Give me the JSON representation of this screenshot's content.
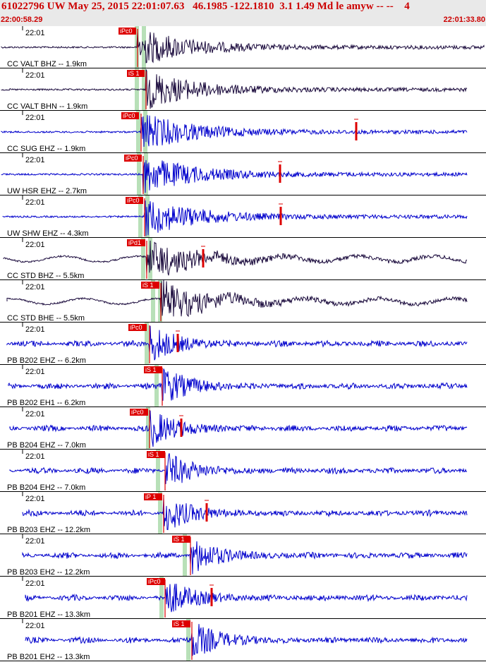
{
  "header": {
    "title": "61022796 UW May 25, 2015 22:01:07.63   46.1985 -122.1810  3.1 1.49 Md le amyw -- --    4",
    "start_time": "22:00:58.29",
    "end_time": "22:01:33.80"
  },
  "colors": {
    "header_bg": "#e9e9e9",
    "header_text": "#cc0000",
    "trace_blue": "#0000cc",
    "trace_dark": "#1a0a3c",
    "pick_red": "#dd0000",
    "window_green": "#b8e0b8"
  },
  "time_tick_label": "22:01",
  "panels": [
    {
      "label": "CC VALT BHZ -- 1.9km",
      "pick": "iPc0",
      "color": "dark"
    },
    {
      "label": "CC VALT BHN -- 1.9km",
      "pick": "iS 1",
      "color": "dark"
    },
    {
      "label": "CC SUG EHZ -- 1.9km",
      "pick": "iPc0",
      "color": "blue"
    },
    {
      "label": "UW HSR EHZ -- 2.7km",
      "pick": "iPc0",
      "color": "blue"
    },
    {
      "label": "UW SHW EHZ -- 4.3km",
      "pick": "iPc0",
      "color": "blue"
    },
    {
      "label": "CC STD BHZ -- 5.5km",
      "pick": "iPd1",
      "color": "dark"
    },
    {
      "label": "CC STD BHE -- 5.5km",
      "pick": "iS 1",
      "color": "dark"
    },
    {
      "label": "PB B202 EHZ -- 6.2km",
      "pick": "iPc0",
      "color": "blue"
    },
    {
      "label": "PB B202 EH1 -- 6.2km",
      "pick": "iS 1",
      "color": "blue"
    },
    {
      "label": "PB B204 EHZ -- 7.0km",
      "pick": "iPc0",
      "color": "blue"
    },
    {
      "label": "PB B204 EH2 -- 7.0km",
      "pick": "iS 1",
      "color": "blue"
    },
    {
      "label": "PB B203 EHZ -- 12.2km",
      "pick": "iP 1",
      "color": "blue"
    },
    {
      "label": "PB B203 EH2 -- 12.2km",
      "pick": "iS 1",
      "color": "blue"
    },
    {
      "label": "PB B201 EHZ -- 13.3km",
      "pick": "iPc0",
      "color": "blue"
    },
    {
      "label": "PB B201 EH2 -- 13.3km",
      "pick": "iS 1",
      "color": "blue"
    }
  ]
}
